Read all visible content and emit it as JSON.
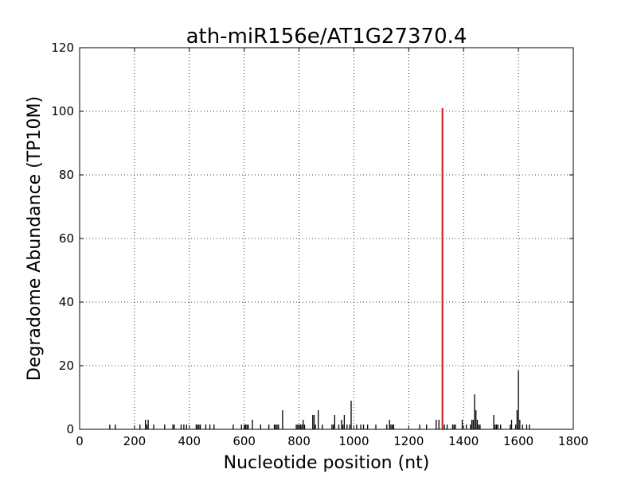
{
  "chart_data": {
    "type": "bar",
    "title": "ath-miR156e/AT1G27370.4",
    "xlabel": "Nucleotide position (nt)",
    "ylabel": "Degradome Abundance (TP10M)",
    "xlim": [
      0,
      1800
    ],
    "ylim": [
      0,
      120
    ],
    "xticks": [
      0,
      200,
      400,
      600,
      800,
      1000,
      1200,
      1400,
      1600,
      1800
    ],
    "yticks": [
      0,
      20,
      40,
      60,
      80,
      100,
      120
    ],
    "grid": true,
    "series": [
      {
        "color": "#000000",
        "x": [
          110,
          130,
          220,
          240,
          245,
          250,
          270,
          310,
          340,
          345,
          370,
          380,
          390,
          425,
          430,
          435,
          440,
          460,
          475,
          490,
          560,
          590,
          600,
          605,
          610,
          615,
          630,
          660,
          690,
          710,
          715,
          720,
          725,
          740,
          790,
          795,
          800,
          805,
          810,
          815,
          820,
          850,
          855,
          860,
          870,
          885,
          920,
          925,
          930,
          945,
          955,
          960,
          965,
          975,
          985,
          990,
          1010,
          1025,
          1035,
          1050,
          1080,
          1120,
          1130,
          1135,
          1140,
          1145,
          1240,
          1265,
          1300,
          1310,
          1330,
          1340,
          1360,
          1365,
          1370,
          1395,
          1410,
          1425,
          1430,
          1435,
          1440,
          1445,
          1450,
          1455,
          1460,
          1510,
          1515,
          1520,
          1525,
          1535,
          1570,
          1575,
          1590,
          1595,
          1600,
          1605,
          1615,
          1630,
          1640
        ],
        "values": [
          1.5,
          1.5,
          1.5,
          3,
          1.5,
          3,
          1.5,
          1.5,
          1.5,
          1.5,
          1.5,
          1.5,
          1.5,
          1.5,
          1.5,
          1.5,
          1.5,
          1.5,
          1.5,
          1.5,
          1.5,
          1.5,
          1.5,
          1.5,
          1.5,
          1.5,
          3,
          1.5,
          1.5,
          1.5,
          1.5,
          1.5,
          1.5,
          6,
          1.5,
          1.5,
          1.5,
          1.5,
          1.5,
          3,
          1.5,
          4.5,
          4.5,
          1.5,
          6,
          1.5,
          1.5,
          1.5,
          4.5,
          1.5,
          3,
          1.5,
          4.5,
          1.5,
          1.5,
          9,
          1.5,
          1.5,
          1.5,
          1.5,
          1.5,
          1.5,
          3,
          1.5,
          1.5,
          1.5,
          1.5,
          1.5,
          3,
          3,
          1.5,
          1.5,
          1.5,
          1.5,
          1.5,
          3,
          1.5,
          1.5,
          3,
          3,
          11,
          6,
          3,
          1.5,
          1.5,
          4.5,
          1.5,
          1.5,
          1.5,
          1.5,
          1.5,
          3,
          1.5,
          6,
          18.5,
          3,
          1.5,
          1.5,
          1.5
        ]
      },
      {
        "color": "#d62728",
        "x": [
          1323
        ],
        "values": [
          101
        ]
      }
    ]
  }
}
